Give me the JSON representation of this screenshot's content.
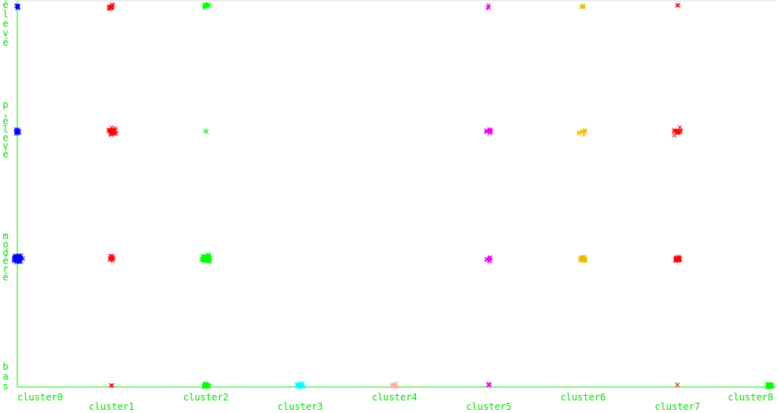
{
  "chart_data": {
    "type": "scatter",
    "title": "",
    "xlabel": "",
    "ylabel": "",
    "marker": "x",
    "categories": [
      "cluster0",
      "cluster1",
      "cluster2",
      "cluster3",
      "cluster4",
      "cluster5",
      "cluster6",
      "cluster7",
      "cluster8"
    ],
    "levels": [
      "bas",
      "modéré",
      "p.élevé",
      "élevé"
    ],
    "grid": false,
    "colors": {
      "axis": "#00ee00",
      "labels": "#00e000",
      "cluster0": "#0000ff",
      "cluster1": "#ff0000",
      "cluster2": "#00ff00",
      "cluster3": "#00ffff",
      "cluster4": "#ffaaaa",
      "cluster5": "#ee00ee",
      "cluster6": "#eebb00",
      "cluster7": "#ff0000",
      "cluster8": "#00ff00"
    },
    "groups": [
      {
        "cluster": 0,
        "level": 3,
        "count": 6,
        "spread": "small"
      },
      {
        "cluster": 0,
        "level": 2,
        "count": 18,
        "spread": "small"
      },
      {
        "cluster": 0,
        "level": 1,
        "count": 60,
        "spread": "medium"
      },
      {
        "cluster": 1,
        "level": 3,
        "count": 14,
        "spread": "small"
      },
      {
        "cluster": 1,
        "level": 2,
        "count": 28,
        "spread": "medium"
      },
      {
        "cluster": 1,
        "level": 1,
        "count": 10,
        "spread": "small"
      },
      {
        "cluster": 1,
        "level": 0,
        "count": 2,
        "spread": "tiny"
      },
      {
        "cluster": 2,
        "level": 3,
        "count": 10,
        "spread": "small"
      },
      {
        "cluster": 2,
        "level": 2,
        "count": 2,
        "spread": "tiny"
      },
      {
        "cluster": 2,
        "level": 1,
        "count": 60,
        "spread": "medium"
      },
      {
        "cluster": 2,
        "level": 0,
        "count": 30,
        "spread": "small"
      },
      {
        "cluster": 3,
        "level": 0,
        "count": 35,
        "spread": "small"
      },
      {
        "cluster": 4,
        "level": 0,
        "count": 12,
        "spread": "small"
      },
      {
        "cluster": 5,
        "level": 3,
        "count": 4,
        "spread": "small"
      },
      {
        "cluster": 5,
        "level": 2,
        "count": 14,
        "spread": "small"
      },
      {
        "cluster": 5,
        "level": 1,
        "count": 8,
        "spread": "small"
      },
      {
        "cluster": 5,
        "level": 0,
        "count": 4,
        "spread": "small"
      },
      {
        "cluster": 6,
        "level": 3,
        "count": 5,
        "spread": "tiny"
      },
      {
        "cluster": 6,
        "level": 2,
        "count": 8,
        "spread": "medium"
      },
      {
        "cluster": 6,
        "level": 1,
        "count": 25,
        "spread": "small"
      },
      {
        "cluster": 7,
        "level": 3,
        "count": 2,
        "spread": "tiny"
      },
      {
        "cluster": 7,
        "level": 2,
        "count": 18,
        "spread": "medium"
      },
      {
        "cluster": 7,
        "level": 1,
        "count": 30,
        "spread": "small"
      },
      {
        "cluster": 7,
        "level": 0,
        "count": 1,
        "spread": "tiny"
      },
      {
        "cluster": 8,
        "level": 0,
        "count": 30,
        "spread": "small"
      }
    ]
  }
}
